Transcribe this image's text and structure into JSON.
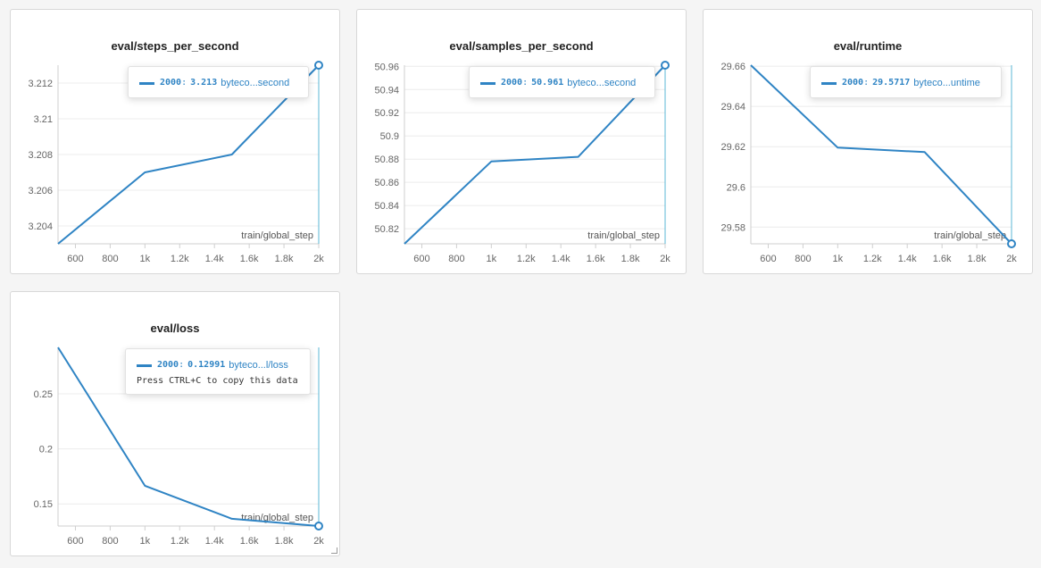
{
  "colors": {
    "series": "#2f84c4",
    "grid": "#ececec",
    "axis": "#cfcfcf",
    "tick_text": "#666666"
  },
  "charts": [
    {
      "title": "eval/steps_per_second",
      "xlabel": "train/global_step",
      "tooltip": {
        "step": "2000",
        "sep": ":",
        "value": "3.213",
        "name": "byteco...second"
      },
      "yticks": [
        "3.212",
        "3.21",
        "3.208",
        "3.206",
        "3.204"
      ],
      "xticks": [
        "600",
        "800",
        "1k",
        "1.2k",
        "1.4k",
        "1.6k",
        "1.8k",
        "2k"
      ]
    },
    {
      "title": "eval/samples_per_second",
      "xlabel": "train/global_step",
      "tooltip": {
        "step": "2000",
        "sep": ":",
        "value": "50.961",
        "name": "byteco...second"
      },
      "yticks": [
        "50.96",
        "50.94",
        "50.92",
        "50.9",
        "50.88",
        "50.86",
        "50.84",
        "50.82"
      ],
      "xticks": [
        "600",
        "800",
        "1k",
        "1.2k",
        "1.4k",
        "1.6k",
        "1.8k",
        "2k"
      ]
    },
    {
      "title": "eval/runtime",
      "xlabel": "train/global_step",
      "tooltip": {
        "step": "2000",
        "sep": ":",
        "value": "29.5717",
        "name": "byteco...untime"
      },
      "yticks": [
        "29.66",
        "29.64",
        "29.62",
        "29.6",
        "29.58"
      ],
      "xticks": [
        "600",
        "800",
        "1k",
        "1.2k",
        "1.4k",
        "1.6k",
        "1.8k",
        "2k"
      ]
    },
    {
      "title": "eval/loss",
      "xlabel": "train/global_step",
      "tooltip": {
        "step": "2000",
        "sep": ":",
        "value": "0.12991",
        "name": "byteco...l/loss",
        "hint": "Press CTRL+C to copy this data"
      },
      "yticks": [
        "0.25",
        "0.2",
        "0.15"
      ],
      "xticks": [
        "600",
        "800",
        "1k",
        "1.2k",
        "1.4k",
        "1.6k",
        "1.8k",
        "2k"
      ]
    }
  ],
  "chart_data": [
    {
      "type": "line",
      "title": "eval/steps_per_second",
      "xlabel": "train/global_step",
      "ylabel": "",
      "xlim": [
        500,
        2000
      ],
      "ylim": [
        3.203,
        3.213
      ],
      "xtick_values": [
        600,
        800,
        1000,
        1200,
        1400,
        1600,
        1800,
        2000
      ],
      "ytick_values": [
        3.212,
        3.21,
        3.208,
        3.206,
        3.204
      ],
      "grid": true,
      "series": [
        {
          "x": [
            500,
            1000,
            1500,
            2000
          ],
          "y": [
            3.203,
            3.207,
            3.208,
            3.213
          ]
        }
      ],
      "hover_x": 2000
    },
    {
      "type": "line",
      "title": "eval/samples_per_second",
      "xlabel": "train/global_step",
      "ylabel": "",
      "xlim": [
        500,
        2000
      ],
      "ylim": [
        50.807,
        50.961
      ],
      "xtick_values": [
        600,
        800,
        1000,
        1200,
        1400,
        1600,
        1800,
        2000
      ],
      "ytick_values": [
        50.96,
        50.94,
        50.92,
        50.9,
        50.88,
        50.86,
        50.84,
        50.82
      ],
      "grid": true,
      "series": [
        {
          "x": [
            500,
            1000,
            1500,
            2000
          ],
          "y": [
            50.807,
            50.878,
            50.882,
            50.961
          ]
        }
      ],
      "hover_x": 2000
    },
    {
      "type": "line",
      "title": "eval/runtime",
      "xlabel": "train/global_step",
      "ylabel": "",
      "xlim": [
        500,
        2000
      ],
      "ylim": [
        29.5717,
        29.6605
      ],
      "xtick_values": [
        600,
        800,
        1000,
        1200,
        1400,
        1600,
        1800,
        2000
      ],
      "ytick_values": [
        29.66,
        29.64,
        29.62,
        29.6,
        29.58
      ],
      "grid": true,
      "series": [
        {
          "x": [
            500,
            1000,
            1500,
            2000
          ],
          "y": [
            29.6605,
            29.6195,
            29.6173,
            29.5717
          ]
        }
      ],
      "hover_x": 2000
    },
    {
      "type": "line",
      "title": "eval/loss",
      "xlabel": "train/global_step",
      "ylabel": "",
      "xlim": [
        500,
        2000
      ],
      "ylim": [
        0.12991,
        0.2922
      ],
      "xtick_values": [
        600,
        800,
        1000,
        1200,
        1400,
        1600,
        1800,
        2000
      ],
      "ytick_values": [
        0.25,
        0.2,
        0.15
      ],
      "grid": true,
      "series": [
        {
          "x": [
            500,
            1000,
            1500,
            2000
          ],
          "y": [
            0.2922,
            0.1665,
            0.1365,
            0.12991
          ]
        }
      ],
      "hover_x": 2000
    }
  ]
}
